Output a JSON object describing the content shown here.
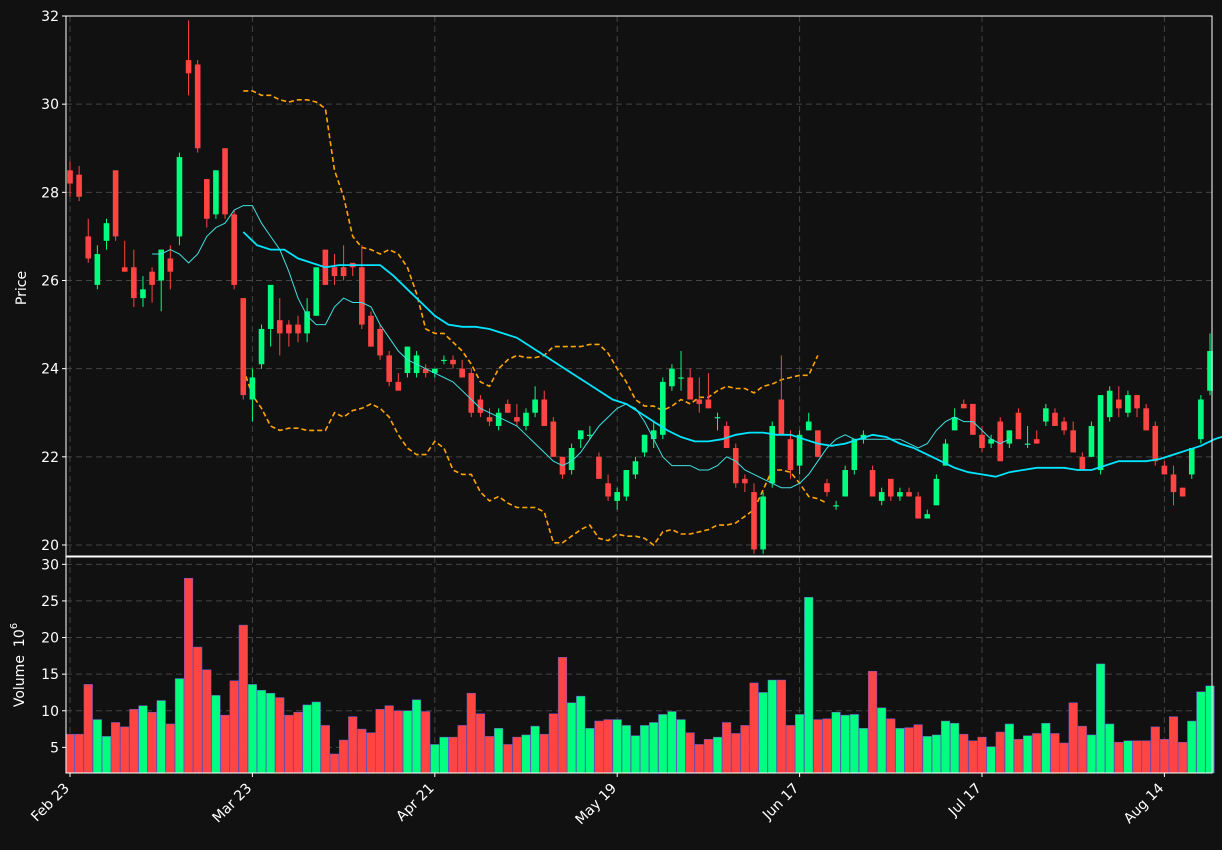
{
  "chart_data": {
    "type": "candlestick",
    "price_panel": {
      "ylabel": "Price",
      "ylim": [
        19.75,
        32.0
      ],
      "yticks": [
        "20",
        "22",
        "24",
        "26",
        "28",
        "30",
        "32"
      ],
      "grid": true
    },
    "volume_panel": {
      "ylabel": "Volume",
      "ylabel_exponent": "6",
      "ylim": [
        1.5,
        31.0
      ],
      "yticks": [
        "5",
        "10",
        "15",
        "20",
        "25",
        "30"
      ],
      "grid": true
    },
    "x_tick_labels": [
      {
        "label": "Feb 23",
        "index": 0
      },
      {
        "label": "Mar 23",
        "index": 20
      },
      {
        "label": "Apr 21",
        "index": 40
      },
      {
        "label": "May 19",
        "index": 60
      },
      {
        "label": "Jun 17",
        "index": 80
      },
      {
        "label": "Jul 17",
        "index": 100
      },
      {
        "label": "Aug 14",
        "index": 120
      }
    ],
    "up_color": "#00ff7f",
    "down_color": "#ff4444",
    "ma_short_color": "#40e0e0",
    "ma_long_color": "#00e5ff",
    "band_color": "#ffa500",
    "band_start_index": 19,
    "ma_long_start_index": 19,
    "ma_short_start_index": 9,
    "candles": [
      [
        28.5,
        28.7,
        27.9,
        28.2
      ],
      [
        28.4,
        28.6,
        27.8,
        27.9
      ],
      [
        27.0,
        27.4,
        26.4,
        26.5
      ],
      [
        25.9,
        26.8,
        25.8,
        26.6
      ],
      [
        26.9,
        27.4,
        26.7,
        27.3
      ],
      [
        28.5,
        28.5,
        26.9,
        27.0
      ],
      [
        26.3,
        26.9,
        26.2,
        26.2
      ],
      [
        26.3,
        26.7,
        25.4,
        25.6
      ],
      [
        25.6,
        26.1,
        25.4,
        25.8
      ],
      [
        26.2,
        26.3,
        25.5,
        25.9
      ],
      [
        26.0,
        26.7,
        25.3,
        26.7
      ],
      [
        26.5,
        26.8,
        25.8,
        26.2
      ],
      [
        27.0,
        28.9,
        26.8,
        28.8
      ],
      [
        31.0,
        31.9,
        30.2,
        30.7
      ],
      [
        30.9,
        31.0,
        28.9,
        29.0
      ],
      [
        28.3,
        28.3,
        27.2,
        27.4
      ],
      [
        27.5,
        28.5,
        27.4,
        28.5
      ],
      [
        29.0,
        29.0,
        27.4,
        27.5
      ],
      [
        27.5,
        27.6,
        25.8,
        25.9
      ],
      [
        25.6,
        25.6,
        23.3,
        23.4
      ],
      [
        23.3,
        24.0,
        22.8,
        23.8
      ],
      [
        24.1,
        25.0,
        24.0,
        24.9
      ],
      [
        24.9,
        25.9,
        24.5,
        25.9
      ],
      [
        25.1,
        25.6,
        24.3,
        24.8
      ],
      [
        25.0,
        25.1,
        24.5,
        24.8
      ],
      [
        25.0,
        25.2,
        24.6,
        24.8
      ],
      [
        24.8,
        25.6,
        24.6,
        25.3
      ],
      [
        25.2,
        26.3,
        25.2,
        26.3
      ],
      [
        26.7,
        26.7,
        25.9,
        25.9
      ],
      [
        26.3,
        26.6,
        25.9,
        26.1
      ],
      [
        26.3,
        26.8,
        26.0,
        26.1
      ],
      [
        26.4,
        26.4,
        26.1,
        26.3
      ],
      [
        26.3,
        26.8,
        24.9,
        25.0
      ],
      [
        25.2,
        25.3,
        24.5,
        24.5
      ],
      [
        24.9,
        25.0,
        24.2,
        24.3
      ],
      [
        24.3,
        24.4,
        23.6,
        23.7
      ],
      [
        23.7,
        23.9,
        23.5,
        23.5
      ],
      [
        23.9,
        24.5,
        23.8,
        24.5
      ],
      [
        23.9,
        24.4,
        23.8,
        24.3
      ],
      [
        24.0,
        24.1,
        23.8,
        23.9
      ],
      [
        23.9,
        24.0,
        23.8,
        24.0
      ],
      [
        24.2,
        24.3,
        24.1,
        24.2
      ],
      [
        24.2,
        24.3,
        24.0,
        24.1
      ],
      [
        24.0,
        24.2,
        23.8,
        23.8
      ],
      [
        23.9,
        24.0,
        22.9,
        23.0
      ],
      [
        23.3,
        23.4,
        22.9,
        23.0
      ],
      [
        22.9,
        23.1,
        22.7,
        22.8
      ],
      [
        22.7,
        23.1,
        22.6,
        23.0
      ],
      [
        23.2,
        23.3,
        23.0,
        23.0
      ],
      [
        22.9,
        23.2,
        22.7,
        22.8
      ],
      [
        22.7,
        23.1,
        22.6,
        23.0
      ],
      [
        23.0,
        23.6,
        22.9,
        23.3
      ],
      [
        23.3,
        23.5,
        22.7,
        22.7
      ],
      [
        22.8,
        22.9,
        22.0,
        22.0
      ],
      [
        22.0,
        22.0,
        21.5,
        21.6
      ],
      [
        21.7,
        22.3,
        21.6,
        22.2
      ],
      [
        22.4,
        22.6,
        22.2,
        22.6
      ],
      [
        22.5,
        22.7,
        22.4,
        22.5
      ],
      [
        22.0,
        22.1,
        21.5,
        21.5
      ],
      [
        21.4,
        21.6,
        21.0,
        21.1
      ],
      [
        21.0,
        21.3,
        20.8,
        21.2
      ],
      [
        21.1,
        21.7,
        21.0,
        21.7
      ],
      [
        21.6,
        22.0,
        21.5,
        21.9
      ],
      [
        22.1,
        22.5,
        22.0,
        22.5
      ],
      [
        22.4,
        22.8,
        22.2,
        22.6
      ],
      [
        22.5,
        23.8,
        22.4,
        23.7
      ],
      [
        23.6,
        24.1,
        23.5,
        24.0
      ],
      [
        23.8,
        24.4,
        23.5,
        23.8
      ],
      [
        23.8,
        24.0,
        23.3,
        23.3
      ],
      [
        23.3,
        23.8,
        23.0,
        23.2
      ],
      [
        23.3,
        23.9,
        23.1,
        23.1
      ],
      [
        22.9,
        23.0,
        22.6,
        22.9
      ],
      [
        22.7,
        22.8,
        22.2,
        22.2
      ],
      [
        22.2,
        22.3,
        21.3,
        21.4
      ],
      [
        21.5,
        21.6,
        21.2,
        21.4
      ],
      [
        21.2,
        21.4,
        19.8,
        19.9
      ],
      [
        19.9,
        21.2,
        19.8,
        21.1
      ],
      [
        21.4,
        22.8,
        21.3,
        22.7
      ],
      [
        23.3,
        24.3,
        22.5,
        22.5
      ],
      [
        22.4,
        22.6,
        21.5,
        21.7
      ],
      [
        21.8,
        22.6,
        21.6,
        22.5
      ],
      [
        22.6,
        23.0,
        22.6,
        22.8
      ],
      [
        22.6,
        22.6,
        22.0,
        22.0
      ],
      [
        21.4,
        21.5,
        21.1,
        21.2
      ],
      [
        20.9,
        21.0,
        20.8,
        20.9
      ],
      [
        21.1,
        21.8,
        21.1,
        21.7
      ],
      [
        21.7,
        22.4,
        21.6,
        22.4
      ],
      [
        22.4,
        22.6,
        22.3,
        22.5
      ],
      [
        21.7,
        21.8,
        21.1,
        21.1
      ],
      [
        21.0,
        21.3,
        20.9,
        21.2
      ],
      [
        21.5,
        21.5,
        21.0,
        21.1
      ],
      [
        21.1,
        21.3,
        21.0,
        21.2
      ],
      [
        21.2,
        21.3,
        21.1,
        21.1
      ],
      [
        21.1,
        21.2,
        20.6,
        20.6
      ],
      [
        20.6,
        20.8,
        20.6,
        20.7
      ],
      [
        20.9,
        21.6,
        20.9,
        21.5
      ],
      [
        21.8,
        22.4,
        21.8,
        22.3
      ],
      [
        22.6,
        23.1,
        22.6,
        22.9
      ],
      [
        23.2,
        23.3,
        23.1,
        23.1
      ],
      [
        23.2,
        23.2,
        22.5,
        22.5
      ],
      [
        22.5,
        22.7,
        22.1,
        22.2
      ],
      [
        22.3,
        22.5,
        22.2,
        22.4
      ],
      [
        22.8,
        22.9,
        21.9,
        21.9
      ],
      [
        22.3,
        22.6,
        22.2,
        22.6
      ],
      [
        23.0,
        23.1,
        22.4,
        22.4
      ],
      [
        22.3,
        22.7,
        22.2,
        22.3
      ],
      [
        22.4,
        22.6,
        22.3,
        22.3
      ],
      [
        22.8,
        23.2,
        22.7,
        23.1
      ],
      [
        23.0,
        23.1,
        22.7,
        22.7
      ],
      [
        22.8,
        22.9,
        22.5,
        22.6
      ],
      [
        22.6,
        22.8,
        22.1,
        22.1
      ],
      [
        22.0,
        22.1,
        21.7,
        21.7
      ],
      [
        22.0,
        22.8,
        22.0,
        22.7
      ],
      [
        21.7,
        23.4,
        21.6,
        23.4
      ],
      [
        22.9,
        23.6,
        22.8,
        23.5
      ],
      [
        23.3,
        23.6,
        22.9,
        23.1
      ],
      [
        23.0,
        23.5,
        22.9,
        23.4
      ],
      [
        23.4,
        23.4,
        22.9,
        23.1
      ],
      [
        23.1,
        23.2,
        22.6,
        22.6
      ],
      [
        22.7,
        22.8,
        21.8,
        21.9
      ],
      [
        21.8,
        21.9,
        21.6,
        21.6
      ],
      [
        21.6,
        21.8,
        20.9,
        21.2
      ],
      [
        21.3,
        21.3,
        21.1,
        21.1
      ],
      [
        21.6,
        22.2,
        21.5,
        22.2
      ],
      [
        22.4,
        23.4,
        22.3,
        23.3
      ],
      [
        23.5,
        24.8,
        23.4,
        24.4
      ]
    ],
    "volumes": [
      6.8,
      6.8,
      13.6,
      8.8,
      6.5,
      8.4,
      7.8,
      10.2,
      10.7,
      9.8,
      11.4,
      8.2,
      14.4,
      28.1,
      18.7,
      15.6,
      12.1,
      9.4,
      14.1,
      21.7,
      13.6,
      12.8,
      12.4,
      11.8,
      9.4,
      9.8,
      10.8,
      11.2,
      8.0,
      4.1,
      6.0,
      9.2,
      7.5,
      7.0,
      10.2,
      10.7,
      10.0,
      10.0,
      11.5,
      9.9,
      5.4,
      6.4,
      6.4,
      8.0,
      12.4,
      9.6,
      6.5,
      7.6,
      5.4,
      6.4,
      6.7,
      7.9,
      6.8,
      9.6,
      17.3,
      11.1,
      12.0,
      7.6,
      8.6,
      8.8,
      8.8,
      8.0,
      6.6,
      8.0,
      8.4,
      9.5,
      9.9,
      8.8,
      7.0,
      5.4,
      6.1,
      6.4,
      8.4,
      6.9,
      8.0,
      13.8,
      12.5,
      14.2,
      14.2,
      8.0,
      9.5,
      25.5,
      8.8,
      8.9,
      9.8,
      9.4,
      9.5,
      7.6,
      15.4,
      10.4,
      8.9,
      7.6,
      7.7,
      8.1,
      6.5,
      6.7,
      8.6,
      8.3,
      6.8,
      5.9,
      6.4,
      5.1,
      7.1,
      8.2,
      6.1,
      6.6,
      6.9,
      8.3,
      6.9,
      5.6,
      11.1,
      7.9,
      6.7,
      16.4,
      8.2,
      5.7,
      5.9,
      5.9,
      5.9,
      7.8,
      6.1,
      9.2,
      5.7,
      8.6,
      12.6,
      13.4
    ],
    "ma_short": [
      26.6,
      26.6,
      26.7,
      26.6,
      26.4,
      26.6,
      27.0,
      27.2,
      27.3,
      27.6,
      27.7,
      27.7,
      27.3,
      27.0,
      26.7,
      26.2,
      25.6,
      25.2,
      25.0,
      25.0,
      25.4,
      25.6,
      25.5,
      25.5,
      25.4,
      25.0,
      24.7,
      24.4,
      24.2,
      24.1,
      24.0,
      23.9,
      23.8,
      23.7,
      23.5,
      23.3,
      23.1,
      23.0,
      22.9,
      22.8,
      22.7,
      22.5,
      22.3,
      22.1,
      21.9,
      21.8,
      21.9,
      22.1,
      22.4,
      22.7,
      22.9,
      23.1,
      23.2,
      23.1,
      22.8,
      22.4,
      22.0,
      21.8,
      21.8,
      21.8,
      21.7,
      21.7,
      21.8,
      22.0,
      21.9,
      21.7,
      21.6,
      21.5,
      21.4,
      21.3,
      21.3,
      21.4,
      21.6,
      21.9,
      22.2,
      22.4,
      22.5,
      22.4,
      22.4,
      22.4,
      22.4,
      22.4,
      22.4,
      22.3,
      22.2,
      22.3,
      22.6,
      22.8,
      22.9,
      22.8,
      22.8,
      22.6,
      22.4,
      22.3,
      22.4
    ],
    "ma_long": [
      27.1,
      26.8,
      26.7,
      26.7,
      26.5,
      26.4,
      26.3,
      26.35,
      26.35,
      26.35,
      26.35,
      26.1,
      25.8,
      25.5,
      25.2,
      25.0,
      24.95,
      24.95,
      24.9,
      24.8,
      24.7,
      24.5,
      24.3,
      24.1,
      23.9,
      23.7,
      23.5,
      23.3,
      23.2,
      23.0,
      22.8,
      22.6,
      22.45,
      22.35,
      22.35,
      22.4,
      22.5,
      22.55,
      22.55,
      22.5,
      22.5,
      22.4,
      22.3,
      22.25,
      22.3,
      22.4,
      22.5,
      22.45,
      22.3,
      22.2,
      22.05,
      21.9,
      21.75,
      21.65,
      21.6,
      21.55,
      21.65,
      21.7,
      21.75,
      21.75,
      21.75,
      21.7,
      21.7,
      21.8,
      21.9,
      21.9,
      21.9,
      21.95,
      22.05,
      22.15,
      22.25,
      22.4,
      22.5,
      22.6,
      22.65,
      22.6,
      22.55,
      22.5,
      22.45,
      22.4,
      22.45,
      22.6
    ],
    "band_upper": [
      30.3,
      30.3,
      30.2,
      30.2,
      30.1,
      30.05,
      30.1,
      30.1,
      30.05,
      29.9,
      28.5,
      27.9,
      27.0,
      26.75,
      26.7,
      26.6,
      26.7,
      26.6,
      26.3,
      25.7,
      24.9,
      24.8,
      24.8,
      24.6,
      24.4,
      24.1,
      23.7,
      23.6,
      24.0,
      24.2,
      24.3,
      24.25,
      24.25,
      24.3,
      24.5,
      24.5,
      24.5,
      24.5,
      24.55,
      24.55,
      24.35,
      24.0,
      23.7,
      23.3,
      23.15,
      23.15,
      23.05,
      23.15,
      23.3,
      23.2,
      23.35,
      23.35,
      23.5,
      23.6,
      23.55,
      23.55,
      23.45,
      23.6,
      23.65,
      23.75,
      23.8,
      23.85,
      23.85,
      24.3
    ],
    "band_lower": [
      24.0,
      23.4,
      23.1,
      22.7,
      22.6,
      22.65,
      22.65,
      22.6,
      22.6,
      22.6,
      23.0,
      22.9,
      23.05,
      23.1,
      23.2,
      23.1,
      22.9,
      22.5,
      22.2,
      22.05,
      22.05,
      22.35,
      22.2,
      21.7,
      21.6,
      21.6,
      21.2,
      21.0,
      21.1,
      20.95,
      20.85,
      20.85,
      20.85,
      20.75,
      20.05,
      20.05,
      20.2,
      20.35,
      20.45,
      20.15,
      20.1,
      20.25,
      20.2,
      20.2,
      20.15,
      20.0,
      20.3,
      20.35,
      20.25,
      20.25,
      20.3,
      20.35,
      20.45,
      20.45,
      20.5,
      20.65,
      20.8,
      21.25,
      21.7,
      21.7,
      21.65,
      21.4,
      21.1,
      21.05,
      20.95
    ]
  }
}
